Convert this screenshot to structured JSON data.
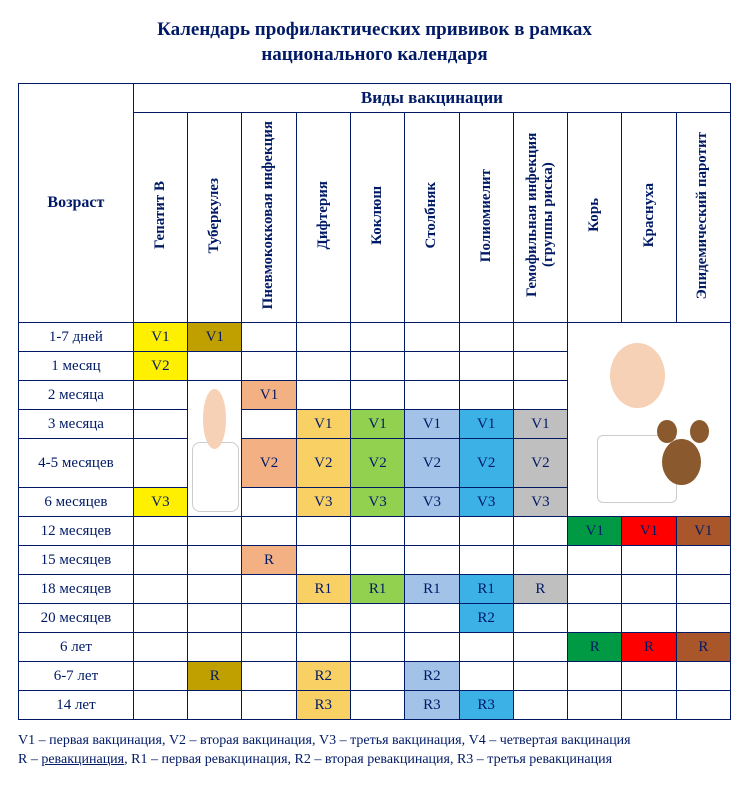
{
  "title_line1": "Календарь профилактических прививок в рамках",
  "title_line2": "национального календаря",
  "headers": {
    "age": "Возраст",
    "types": "Виды вакцинации"
  },
  "vaccines": [
    {
      "key": "hepb",
      "label": "Гепатит В"
    },
    {
      "key": "tb",
      "label": "Туберкулез"
    },
    {
      "key": "pneumo",
      "label": "Пневмококковая инфекция"
    },
    {
      "key": "dip",
      "label": "Дифтерия"
    },
    {
      "key": "kok",
      "label": "Коклюш"
    },
    {
      "key": "stolb",
      "label": "Столбняк"
    },
    {
      "key": "polio",
      "label": "Полиомиелит"
    },
    {
      "key": "hib",
      "label": "Гемофильная инфекция (группы риска)"
    },
    {
      "key": "kor",
      "label": "Корь"
    },
    {
      "key": "kras",
      "label": "Краснуха"
    },
    {
      "key": "par",
      "label": "Эпидемический паротит"
    }
  ],
  "age_rows": [
    {
      "age": "1-7 дней",
      "h": "short"
    },
    {
      "age": "1 месяц",
      "h": "short"
    },
    {
      "age": "2 месяца",
      "h": "short"
    },
    {
      "age": "3 месяца",
      "h": "short"
    },
    {
      "age": "4-5 месяцев",
      "h": "tall"
    },
    {
      "age": "6 месяцев",
      "h": "short"
    },
    {
      "age": "12 месяцев",
      "h": "short"
    },
    {
      "age": "15 месяцев",
      "h": "short"
    },
    {
      "age": "18 месяцев",
      "h": "short"
    },
    {
      "age": "20 месяцев",
      "h": "short"
    },
    {
      "age": "6 лет",
      "h": "short"
    },
    {
      "age": "6-7 лет",
      "h": "short"
    },
    {
      "age": "14 лет",
      "h": "short"
    }
  ],
  "colors": {
    "yellow": "#fff000",
    "olive": "#bfa000",
    "peach": "#f3b183",
    "orange": "#f9d064",
    "green": "#92d050",
    "ltblue": "#a3c2e8",
    "blue": "#3bb1e6",
    "grey": "#bfbfbf",
    "dgreen": "#009a44",
    "red": "#ff0000",
    "brown": "#a9562b"
  },
  "cells": [
    {
      "r": 0,
      "c": 0,
      "t": "V1",
      "color": "yellow"
    },
    {
      "r": 0,
      "c": 1,
      "t": "V1",
      "color": "olive",
      "rs": 1
    },
    {
      "r": 1,
      "c": 0,
      "t": "V2",
      "color": "yellow"
    },
    {
      "r": 2,
      "c": 2,
      "t": "V1",
      "color": "peach"
    },
    {
      "r": 3,
      "c": 3,
      "t": "V1",
      "color": "orange"
    },
    {
      "r": 3,
      "c": 4,
      "t": "V1",
      "color": "green"
    },
    {
      "r": 3,
      "c": 5,
      "t": "V1",
      "color": "ltblue"
    },
    {
      "r": 3,
      "c": 6,
      "t": "V1",
      "color": "blue"
    },
    {
      "r": 3,
      "c": 7,
      "t": "V1",
      "color": "grey"
    },
    {
      "r": 4,
      "c": 2,
      "t": "V2",
      "color": "peach"
    },
    {
      "r": 4,
      "c": 3,
      "t": "V2",
      "color": "orange"
    },
    {
      "r": 4,
      "c": 4,
      "t": "V2",
      "color": "green"
    },
    {
      "r": 4,
      "c": 5,
      "t": "V2",
      "color": "ltblue"
    },
    {
      "r": 4,
      "c": 6,
      "t": "V2",
      "color": "blue"
    },
    {
      "r": 4,
      "c": 7,
      "t": "V2",
      "color": "grey"
    },
    {
      "r": 5,
      "c": 0,
      "t": "V3",
      "color": "yellow"
    },
    {
      "r": 5,
      "c": 3,
      "t": "V3",
      "color": "orange"
    },
    {
      "r": 5,
      "c": 4,
      "t": "V3",
      "color": "green"
    },
    {
      "r": 5,
      "c": 5,
      "t": "V3",
      "color": "ltblue"
    },
    {
      "r": 5,
      "c": 6,
      "t": "V3",
      "color": "blue"
    },
    {
      "r": 5,
      "c": 7,
      "t": "V3",
      "color": "grey"
    },
    {
      "r": 6,
      "c": 8,
      "t": "V1",
      "color": "dgreen"
    },
    {
      "r": 6,
      "c": 9,
      "t": "V1",
      "color": "red"
    },
    {
      "r": 6,
      "c": 10,
      "t": "V1",
      "color": "brown"
    },
    {
      "r": 7,
      "c": 2,
      "t": "R",
      "color": "peach"
    },
    {
      "r": 8,
      "c": 3,
      "t": "R1",
      "color": "orange"
    },
    {
      "r": 8,
      "c": 4,
      "t": "R1",
      "color": "green"
    },
    {
      "r": 8,
      "c": 5,
      "t": "R1",
      "color": "ltblue"
    },
    {
      "r": 8,
      "c": 6,
      "t": "R1",
      "color": "blue"
    },
    {
      "r": 8,
      "c": 7,
      "t": "R",
      "color": "grey"
    },
    {
      "r": 9,
      "c": 6,
      "t": "R2",
      "color": "blue"
    },
    {
      "r": 10,
      "c": 8,
      "t": "R",
      "color": "dgreen"
    },
    {
      "r": 10,
      "c": 9,
      "t": "R",
      "color": "red"
    },
    {
      "r": 10,
      "c": 10,
      "t": "R",
      "color": "brown"
    },
    {
      "r": 11,
      "c": 1,
      "t": "R",
      "color": "olive"
    },
    {
      "r": 11,
      "c": 3,
      "t": "R2",
      "color": "orange"
    },
    {
      "r": 11,
      "c": 5,
      "t": "R2",
      "color": "ltblue"
    },
    {
      "r": 12,
      "c": 3,
      "t": "R3",
      "color": "orange"
    },
    {
      "r": 12,
      "c": 5,
      "t": "R3",
      "color": "ltblue"
    },
    {
      "r": 12,
      "c": 6,
      "t": "R3",
      "color": "blue"
    }
  ],
  "images": {
    "baby1": {
      "startRow": 2,
      "rowspan": 4,
      "col": 1
    },
    "baby2": {
      "startRow": 0,
      "rowspan": 6,
      "col": 8,
      "colspan": 3
    }
  },
  "legend": {
    "line1": "V1 – первая вакцинация, V2 – вторая вакцинация, V3 – третья вакцинация, V4 – четвертая вакцинация",
    "line2_a": "R – ",
    "line2_u": "ревакцинация",
    "line2_b": ", R1 – первая ревакцинация, R2 – вторая ревакцинация, R3 – третья ревакцинация"
  },
  "layout": {
    "age_col_width": 110,
    "vac_col_width": 52,
    "header_row_height": 200
  }
}
